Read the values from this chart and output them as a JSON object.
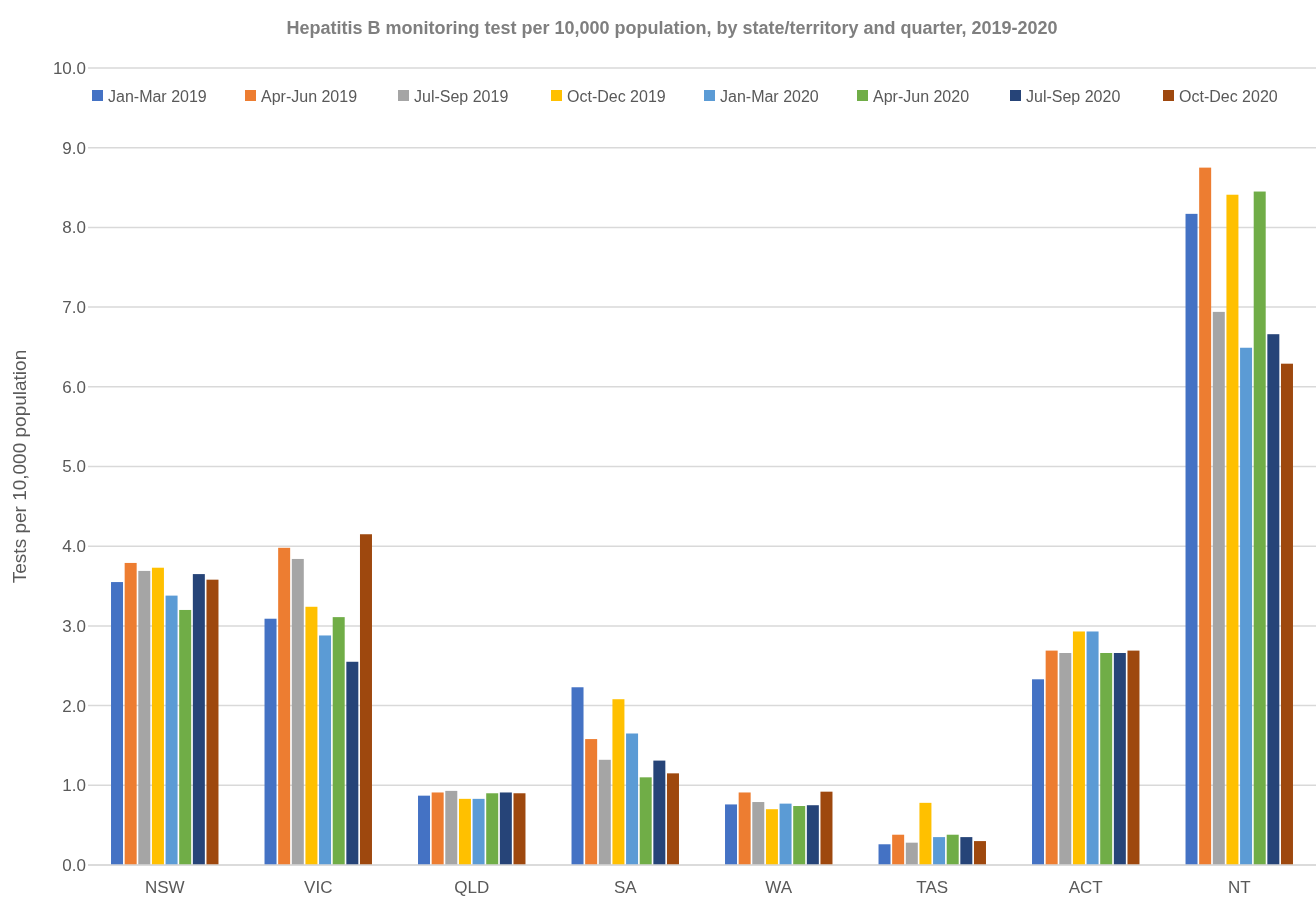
{
  "chart_data": {
    "type": "bar",
    "title": "Hepatitis B monitoring test per 10,000 population, by state/territory and quarter, 2019-2020",
    "ylabel": "Tests per 10,000 population",
    "categories": [
      "NSW",
      "VIC",
      "QLD",
      "SA",
      "WA",
      "TAS",
      "ACT",
      "NT"
    ],
    "series": [
      {
        "name": "Jan-Mar 2019",
        "color": "#4472c4",
        "values": [
          3.55,
          3.09,
          0.87,
          2.23,
          0.76,
          0.26,
          2.33,
          8.17
        ]
      },
      {
        "name": "Apr-Jun 2019",
        "color": "#ed7d31",
        "values": [
          3.79,
          3.98,
          0.91,
          1.58,
          0.91,
          0.38,
          2.69,
          8.75
        ]
      },
      {
        "name": "Jul-Sep 2019",
        "color": "#a5a5a5",
        "values": [
          3.69,
          3.84,
          0.93,
          1.32,
          0.79,
          0.28,
          2.66,
          6.94
        ]
      },
      {
        "name": "Oct-Dec 2019",
        "color": "#ffc000",
        "values": [
          3.73,
          3.24,
          0.83,
          2.08,
          0.7,
          0.78,
          2.93,
          8.41
        ]
      },
      {
        "name": "Jan-Mar 2020",
        "color": "#5b9bd5",
        "values": [
          3.38,
          2.88,
          0.83,
          1.65,
          0.77,
          0.35,
          2.93,
          6.49
        ]
      },
      {
        "name": "Apr-Jun 2020",
        "color": "#70ad47",
        "values": [
          3.2,
          3.11,
          0.9,
          1.1,
          0.74,
          0.38,
          2.66,
          8.45
        ]
      },
      {
        "name": "Jul-Sep 2020",
        "color": "#264478",
        "values": [
          3.65,
          2.55,
          0.91,
          1.31,
          0.75,
          0.35,
          2.66,
          6.66
        ]
      },
      {
        "name": "Oct-Dec 2020",
        "color": "#9e480e",
        "values": [
          3.58,
          4.15,
          0.9,
          1.15,
          0.92,
          0.3,
          2.69,
          6.29
        ]
      }
    ],
    "ylim": [
      0,
      10
    ],
    "yticks": [
      {
        "value": 0,
        "label": "0.0"
      },
      {
        "value": 1,
        "label": "1.0"
      },
      {
        "value": 2,
        "label": "2.0"
      },
      {
        "value": 3,
        "label": "3.0"
      },
      {
        "value": 4,
        "label": "4.0"
      },
      {
        "value": 5,
        "label": "5.0"
      },
      {
        "value": 6,
        "label": "6.0"
      },
      {
        "value": 7,
        "label": "7.0"
      },
      {
        "value": 8,
        "label": "8.0"
      },
      {
        "value": 9,
        "label": "9.0"
      },
      {
        "value": 10,
        "label": "10.0"
      }
    ],
    "grid": "y",
    "legend": "top"
  }
}
